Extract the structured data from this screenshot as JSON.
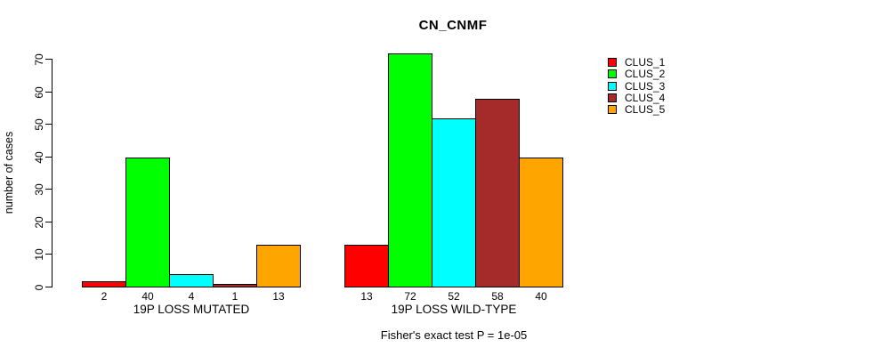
{
  "title": "CN_CNMF",
  "ylabel": "number of cases",
  "footer": "Fisher's exact test P = 1e-05",
  "chart_data": {
    "type": "bar",
    "title": "CN_CNMF",
    "xlabel": "",
    "ylabel": "number of cases",
    "annotation": "Fisher's exact test P = 1e-05",
    "yticks": [
      0,
      10,
      20,
      30,
      40,
      50,
      60,
      70
    ],
    "ylim": [
      0,
      74
    ],
    "grid": false,
    "legend_position": "right",
    "bar_value_labels_shown": true,
    "categories": [
      "19P LOSS MUTATED",
      "19P LOSS WILD-TYPE"
    ],
    "series": [
      {
        "name": "CLUS_1",
        "color": "#FF0000",
        "values": [
          2,
          13
        ]
      },
      {
        "name": "CLUS_2",
        "color": "#00FF00",
        "values": [
          40,
          72
        ]
      },
      {
        "name": "CLUS_3",
        "color": "#00FFFF",
        "values": [
          4,
          52
        ]
      },
      {
        "name": "CLUS_4",
        "color": "#A52A2A",
        "values": [
          1,
          58
        ]
      },
      {
        "name": "CLUS_5",
        "color": "#FFA500",
        "values": [
          13,
          40
        ]
      }
    ],
    "groups": [
      {
        "label": "19P LOSS MUTATED",
        "values": [
          2,
          40,
          4,
          1,
          13
        ]
      },
      {
        "label": "19P LOSS WILD-TYPE",
        "values": [
          13,
          72,
          52,
          58,
          40
        ]
      }
    ]
  },
  "legend": {
    "entries": [
      {
        "label": "CLUS_1",
        "color": "#FF0000"
      },
      {
        "label": "CLUS_2",
        "color": "#00FF00"
      },
      {
        "label": "CLUS_3",
        "color": "#00FFFF"
      },
      {
        "label": "CLUS_4",
        "color": "#A52A2A"
      },
      {
        "label": "CLUS_5",
        "color": "#FFA500"
      }
    ]
  }
}
